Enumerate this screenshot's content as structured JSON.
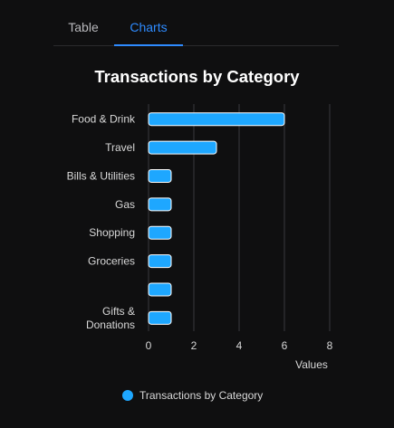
{
  "tabs": [
    {
      "label": "Table"
    },
    {
      "label": "Charts"
    }
  ],
  "chart_data": {
    "type": "bar",
    "orientation": "horizontal",
    "title": "Transactions by Category",
    "categories": [
      "Food & Drink",
      "Travel",
      "Bills & Utilities",
      "Gas",
      "Shopping",
      "Groceries",
      "",
      "Gifts &\nDonations"
    ],
    "series": [
      {
        "name": "Transactions by Category",
        "values": [
          6,
          3,
          1,
          1,
          1,
          1,
          1,
          1
        ]
      }
    ],
    "xlabel": "Values",
    "ylabel": "",
    "xlim": [
      0,
      8
    ],
    "xticks": [
      "0",
      "2",
      "4",
      "6",
      "8"
    ],
    "grid": true,
    "legend_position": "bottom-center",
    "colors": {
      "bar": "#1ea7ff",
      "bar_outline": "#ffffff",
      "grid": "#3a3a3e",
      "axis_text": "#d8d8d8"
    }
  }
}
